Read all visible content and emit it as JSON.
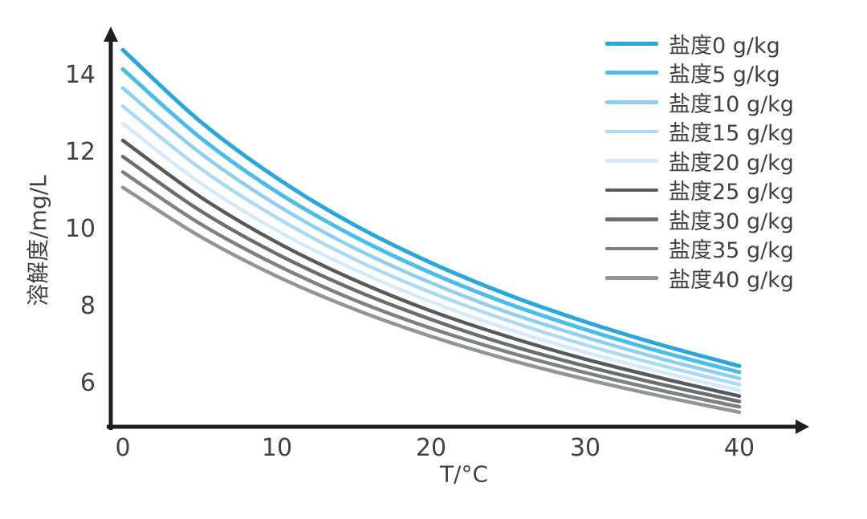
{
  "chart_data": {
    "type": "line",
    "title": "",
    "xlabel": "T/°C",
    "ylabel": "溶解度/mg/L",
    "x": [
      0,
      5,
      10,
      15,
      20,
      25,
      30,
      35,
      40
    ],
    "x_ticks": [
      "0",
      "10",
      "20",
      "30",
      "40"
    ],
    "x_tick_values": [
      0,
      10,
      20,
      30,
      40
    ],
    "y_ticks": [
      "6",
      "8",
      "10",
      "12",
      "14"
    ],
    "y_tick_values": [
      6,
      8,
      10,
      12,
      14
    ],
    "xlim": [
      0,
      44.5
    ],
    "ylim": [
      4.8,
      15.3
    ],
    "grid": false,
    "legend_position": "upper right",
    "axis_color": "#1f1f20",
    "tick_label_color": "#414042",
    "series": [
      {
        "name": "盐度0 g/kg",
        "color": "#2BA6DB",
        "width": 5,
        "values": [
          14.62,
          12.77,
          11.29,
          10.08,
          9.09,
          8.26,
          7.56,
          6.95,
          6.41
        ]
      },
      {
        "name": "盐度5 g/kg",
        "color": "#4CBDE8",
        "width": 5,
        "values": [
          14.12,
          12.35,
          10.93,
          9.78,
          8.83,
          8.03,
          7.36,
          6.77,
          6.25
        ]
      },
      {
        "name": "盐度10 g/kg",
        "color": "#8FCEEE",
        "width": 4.5,
        "values": [
          13.63,
          11.95,
          10.59,
          9.48,
          8.57,
          7.8,
          7.16,
          6.59,
          6.09
        ]
      },
      {
        "name": "盐度15 g/kg",
        "color": "#ABDAF2",
        "width": 4.5,
        "values": [
          13.16,
          11.55,
          10.26,
          9.19,
          8.32,
          7.59,
          6.96,
          6.42,
          5.93
        ]
      },
      {
        "name": "盐度20 g/kg",
        "color": "#D5EAF8",
        "width": 4.5,
        "values": [
          12.71,
          11.17,
          9.93,
          8.92,
          8.08,
          7.37,
          6.77,
          6.25,
          5.78
        ]
      },
      {
        "name": "盐度25 g/kg",
        "color": "#58595B",
        "width": 4.5,
        "values": [
          12.27,
          10.81,
          9.62,
          8.65,
          7.84,
          7.17,
          6.59,
          6.09,
          5.63
        ]
      },
      {
        "name": "盐度30 g/kg",
        "color": "#6B6D6F",
        "width": 4.5,
        "values": [
          11.85,
          10.45,
          9.32,
          8.39,
          7.62,
          6.96,
          6.41,
          5.93,
          5.49
        ]
      },
      {
        "name": "盐度35 g/kg",
        "color": "#7E8083",
        "width": 4.5,
        "values": [
          11.45,
          10.11,
          9.03,
          8.13,
          7.39,
          6.77,
          6.24,
          5.77,
          5.35
        ]
      },
      {
        "name": "盐度40 g/kg",
        "color": "#929497",
        "width": 4.5,
        "values": [
          11.05,
          9.78,
          8.74,
          7.89,
          7.18,
          6.58,
          6.07,
          5.62,
          5.21
        ]
      }
    ]
  }
}
